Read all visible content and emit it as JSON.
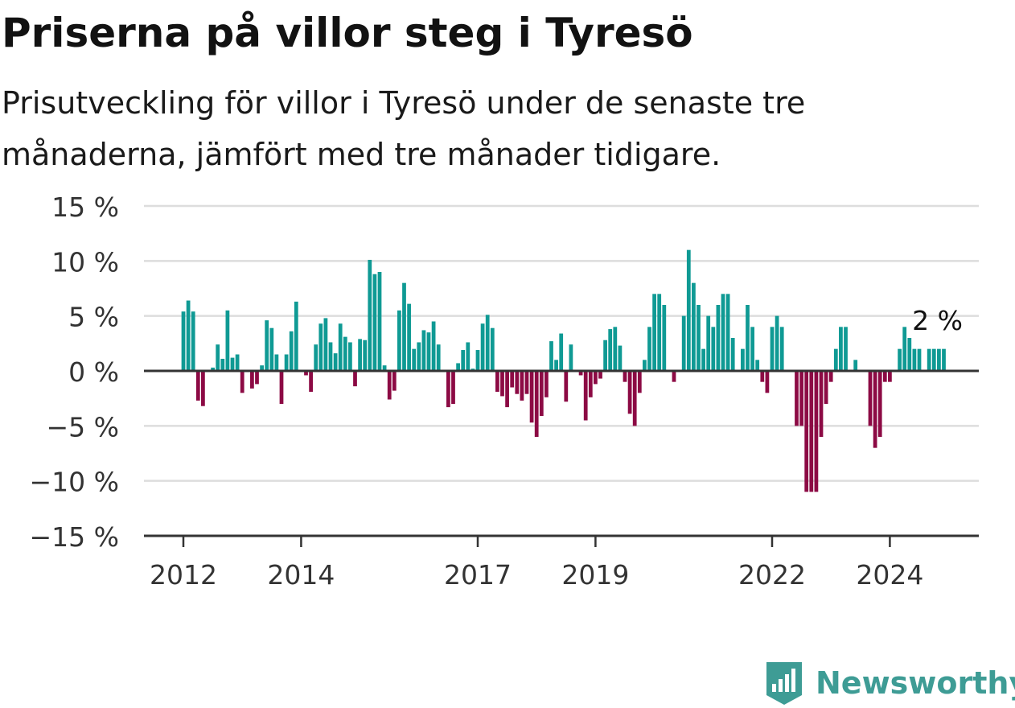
{
  "header": {
    "title": "Priserna på villor steg i Tyresö",
    "subtitle": "Prisutveckling för villor i Tyresö under de senaste tre månaderna, jämfört med tre månader tidigare."
  },
  "brand": {
    "name": "Newsworthy",
    "icon": "newsworthy-logo-icon",
    "color": "#3e9c95"
  },
  "colors": {
    "positive": "#0f9a94",
    "negative": "#8c0a44",
    "grid": "#dddddd",
    "axis": "#333333"
  },
  "chart_data": {
    "type": "bar",
    "title": "Priserna på villor steg i Tyresö",
    "subtitle": "Prisutveckling för villor i Tyresö under de senaste tre månaderna, jämfört med tre månader tidigare.",
    "xlabel": "",
    "ylabel": "",
    "ylim": [
      -15,
      15
    ],
    "yticks": [
      15,
      10,
      5,
      0,
      -5,
      -10,
      -15
    ],
    "ytick_labels": [
      "15 %",
      "10 %",
      "5 %",
      "0 %",
      "−5 %",
      "−10 %",
      "−15 %"
    ],
    "xticks": [
      "2012",
      "2014",
      "2017",
      "2019",
      "2022",
      "2024"
    ],
    "xtick_months": [
      0,
      24,
      60,
      84,
      120,
      144
    ],
    "x_unit": "months since Jan 2012",
    "grid": true,
    "last_value_label": "2 %",
    "series": [
      {
        "values": [
          5.4,
          6.4,
          5.4,
          -2.7,
          -3.2,
          0,
          0.3,
          2.4,
          1.1,
          5.5,
          1.2,
          1.5,
          -2.0,
          0,
          -1.6,
          -1.2,
          0.5,
          4.6,
          3.9,
          1.5,
          -3.0,
          1.5,
          3.6,
          6.3,
          0,
          -0.4,
          -1.9,
          2.4,
          4.3,
          4.8,
          2.6,
          1.6,
          4.3,
          3.1,
          2.6,
          -1.4,
          2.9,
          2.8,
          10.1,
          8.8,
          9.0,
          0.5,
          -2.6,
          -1.8,
          5.5,
          8.0,
          6.1,
          2.0,
          2.6,
          3.7,
          3.5,
          4.5,
          2.4,
          0,
          -3.3,
          -3.0,
          0.7,
          1.9,
          2.6,
          0.2,
          1.9,
          4.3,
          5.1,
          3.9,
          -1.9,
          -2.3,
          -3.3,
          -1.5,
          -2.1,
          -2.7,
          -2.1,
          -4.7,
          -6.0,
          -4.1,
          -2.4,
          2.7,
          1.0,
          3.4,
          -2.8,
          2.4,
          0,
          -0.4,
          -4.5,
          -2.4,
          -1.2,
          -0.7,
          2.8,
          3.8,
          4.0,
          2.3,
          -1.0,
          -3.9,
          -5.0,
          -2.0,
          1.0,
          4.0,
          7.0,
          7.0,
          6.0,
          0,
          -1.0,
          0,
          5.0,
          11.0,
          8.0,
          6.0,
          2.0,
          5.0,
          4.0,
          6.0,
          7.0,
          7.0,
          3.0,
          0,
          2.0,
          6.0,
          4.0,
          1.0,
          -1.0,
          -2.0,
          4.0,
          5.0,
          4.0,
          0,
          0,
          -5.0,
          -5.0,
          -11.0,
          -11.0,
          -11.0,
          -6.0,
          -3.0,
          -1.0,
          2.0,
          4.0,
          4.0,
          0,
          1.0,
          0,
          0,
          -5.0,
          -7.0,
          -6.0,
          -1.0,
          -1.0,
          0,
          2.0,
          4.0,
          3.0,
          2.0,
          2.0,
          0,
          2.0,
          2.0,
          2.0,
          2.0
        ]
      }
    ]
  }
}
